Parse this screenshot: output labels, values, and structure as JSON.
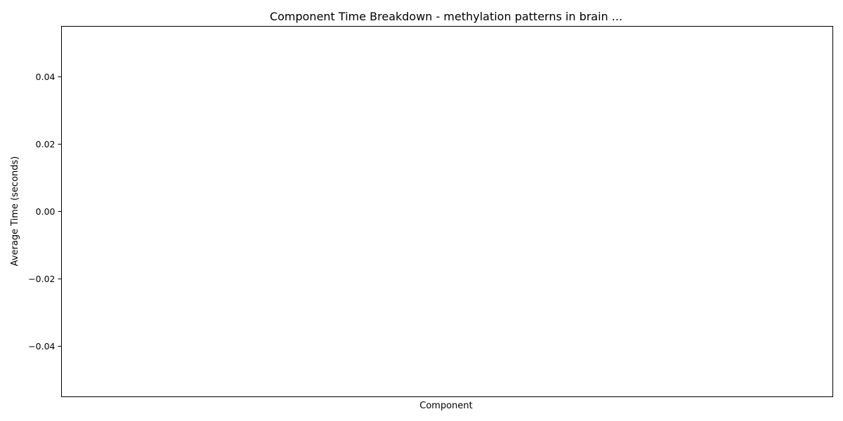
{
  "chart_data": {
    "type": "bar",
    "title": "Component Time Breakdown - methylation patterns in brain ...",
    "xlabel": "Component",
    "ylabel": "Average Time (seconds)",
    "categories": [],
    "values": [],
    "ylim": [
      -0.055,
      0.055
    ],
    "yticks": [
      -0.04,
      -0.02,
      0.0,
      0.02,
      0.04
    ],
    "ytick_labels": [
      "−0.04",
      "−0.02",
      "0.00",
      "0.02",
      "0.04"
    ],
    "grid": false
  }
}
